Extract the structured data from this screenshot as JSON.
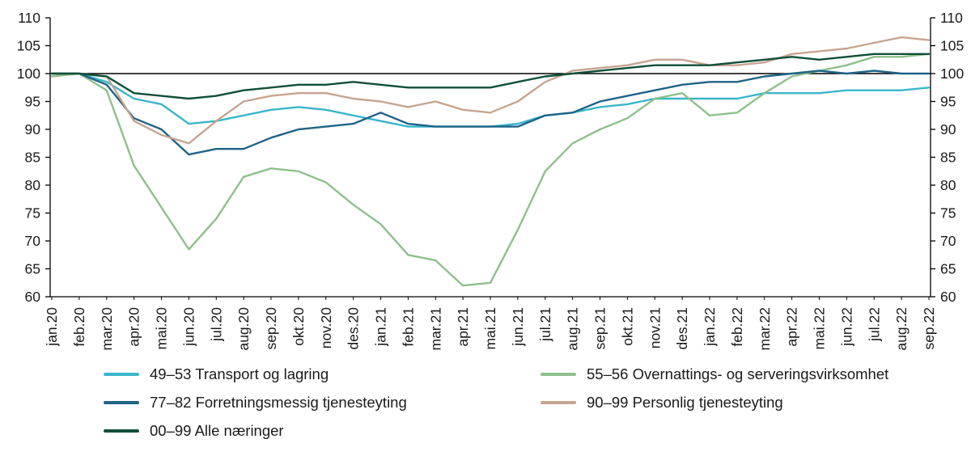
{
  "chart_data": {
    "type": "line",
    "title": "",
    "xlabel": "",
    "ylabel": "",
    "ylim": [
      60,
      110
    ],
    "yticks": [
      60,
      65,
      70,
      75,
      80,
      85,
      90,
      95,
      100,
      105,
      110
    ],
    "reference_line": 100,
    "grid": false,
    "legend_position": "bottom",
    "axis_color": "#000000",
    "text_color": "#1a1a1a",
    "categories": [
      "jan.20",
      "feb.20",
      "mar.20",
      "apr.20",
      "mai.20",
      "jun.20",
      "jul.20",
      "aug.20",
      "sep.20",
      "okt.20",
      "nov.20",
      "des.20",
      "jan.21",
      "feb.21",
      "mar.21",
      "apr.21",
      "mai.21",
      "jun.21",
      "jul.21",
      "aug.21",
      "sep.21",
      "okt.21",
      "nov.21",
      "des.21",
      "jan.22",
      "feb.22",
      "mar.22",
      "apr.22",
      "mai.22",
      "jun.22",
      "jul.22",
      "aug.22",
      "sep.22"
    ],
    "series": [
      {
        "name": "49–53 Transport og lagring",
        "color": "#3ab6c9",
        "values": [
          100,
          100,
          98.5,
          95.5,
          94.5,
          91,
          91.5,
          92.5,
          93.5,
          94,
          93.5,
          92.5,
          91.5,
          90.5,
          90.5,
          90.5,
          90.5,
          91,
          92.5,
          93,
          94,
          94.5,
          95.5,
          95.5,
          95.5,
          95.5,
          96.5,
          96.5,
          96.5,
          97,
          97,
          97,
          97.5
        ]
      },
      {
        "name": "55–56 Overnattings- og serveringsvirksomhet",
        "color": "#8ec08c",
        "values": [
          99.5,
          100,
          97,
          83.5,
          76,
          68.5,
          74,
          81.5,
          83,
          82.5,
          80.5,
          76.5,
          73,
          67.5,
          66.5,
          62,
          62.5,
          72,
          82.5,
          87.5,
          90,
          92,
          95.5,
          96.5,
          92.5,
          93,
          96.5,
          99.5,
          100.5,
          101.5,
          103,
          103,
          103.5
        ]
      },
      {
        "name": "77–82 Forretningsmessig tjenesteyting",
        "color": "#1f6387",
        "values": [
          100,
          100,
          98,
          92,
          90,
          85.5,
          86.5,
          86.5,
          88.5,
          90,
          90.5,
          91,
          93,
          91,
          90.5,
          90.5,
          90.5,
          90.5,
          92.5,
          93,
          95,
          96,
          97,
          98,
          98.5,
          98.5,
          99.5,
          100,
          100.5,
          100,
          100.5,
          100,
          100
        ]
      },
      {
        "name": "90–99 Personlig tjenesteyting",
        "color": "#c8a491",
        "values": [
          100,
          100,
          99.5,
          91.5,
          89,
          87.5,
          91.5,
          95,
          96,
          96.5,
          96.5,
          95.5,
          95,
          94,
          95,
          93.5,
          93,
          95,
          98.5,
          100.5,
          101,
          101.5,
          102.5,
          102.5,
          101.5,
          101.5,
          102,
          103.5,
          104,
          104.5,
          105.5,
          106.5,
          106
        ]
      },
      {
        "name": "00–99 Alle næringer",
        "color": "#0f4f38",
        "values": [
          100,
          100,
          99.5,
          96.5,
          96,
          95.5,
          96,
          97,
          97.5,
          98,
          98,
          98.5,
          98,
          97.5,
          97.5,
          97.5,
          97.5,
          98.5,
          99.5,
          100,
          100.5,
          101,
          101.5,
          101.5,
          101.5,
          102,
          102.5,
          103,
          102.5,
          103,
          103.5,
          103.5,
          103.5
        ]
      }
    ]
  }
}
